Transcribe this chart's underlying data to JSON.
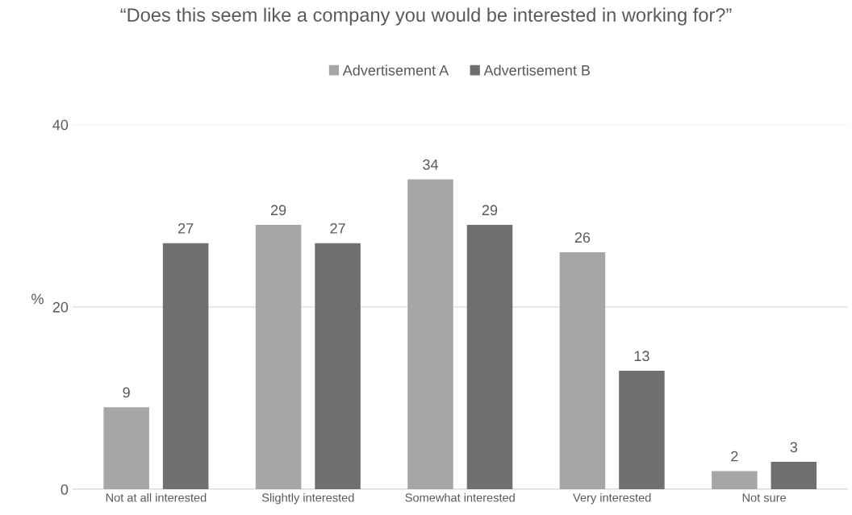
{
  "chart_data": {
    "type": "bar",
    "title": "“Does this seem like a company you would be interested in working for?”",
    "ylabel": "%",
    "categories": [
      "Not at all interested",
      "Slightly interested",
      "Somewhat interested",
      "Very interested",
      "Not sure"
    ],
    "series": [
      {
        "name": "Advertisement A",
        "color": "#a6a6a6",
        "values": [
          9,
          29,
          34,
          26,
          2
        ]
      },
      {
        "name": "Advertisement B",
        "color": "#6f6f6f",
        "values": [
          27,
          27,
          29,
          13,
          3
        ]
      }
    ],
    "ylim": [
      0,
      40
    ],
    "yticks": [
      0,
      20,
      40
    ],
    "grid": "y",
    "legend": "top",
    "data_labels": true
  }
}
